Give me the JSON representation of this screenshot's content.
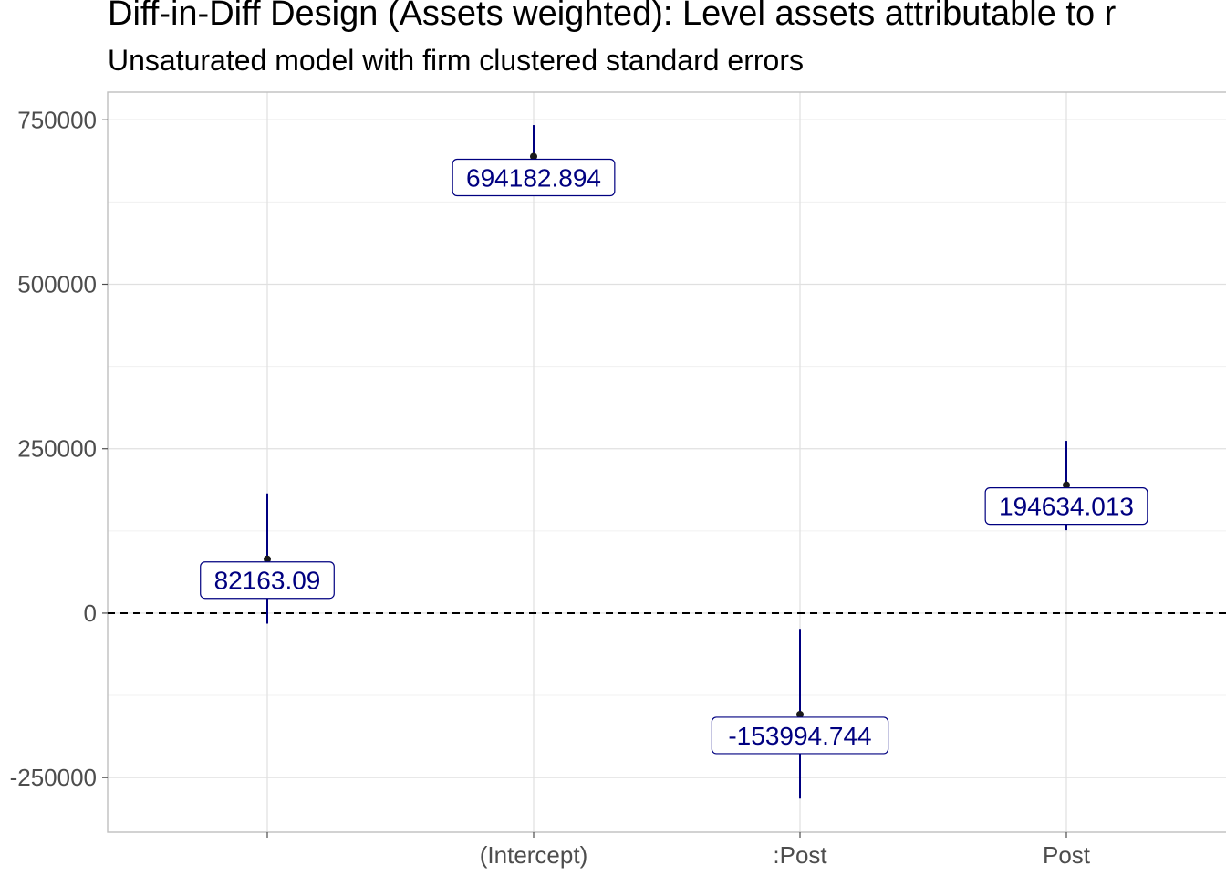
{
  "chart_data": {
    "type": "errorbar",
    "title": "Diff-in-Diff Design (Assets weighted): Level assets attributable to r",
    "subtitle": "Unsaturated model with firm clustered standard errors",
    "xlabel": "",
    "ylabel": "",
    "categories": [
      "",
      "(Intercept)",
      ":Post",
      "Post"
    ],
    "estimates": [
      82163.09,
      694182.894,
      -153994.744,
      194634.013
    ],
    "labels": [
      "82163.09",
      "694182.894",
      "-153994.744",
      "194634.013"
    ],
    "ci_low": [
      -16000,
      648000,
      -282000,
      126000
    ],
    "ci_high": [
      182000,
      742000,
      -24000,
      262000
    ],
    "ylim": [
      -333000,
      792000
    ],
    "y_ticks": [
      -250000,
      0,
      250000,
      500000,
      750000
    ],
    "y_tick_labels": [
      "-250000",
      "0",
      "250000",
      "500000",
      "750000"
    ],
    "reference_line": 0,
    "grid": true,
    "color": "#000080"
  }
}
